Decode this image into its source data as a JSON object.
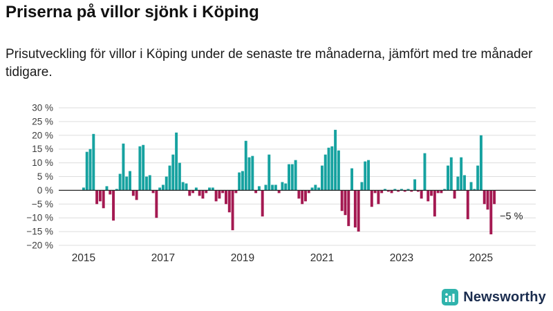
{
  "header": {
    "title": "Priserna på villor sjönk i Köping",
    "subtitle": "Prisutveckling för villor i Köping under de senaste tre månaderna, jämfört med tre månader tidigare."
  },
  "chart_data": {
    "type": "bar",
    "title": "Priserna på villor sjönk i Köping",
    "subtitle": "Prisutveckling för villor i Köping under de senaste tre månaderna, jämfört med tre månader tidigare.",
    "unit": "%",
    "frequency": "monthly",
    "start": "2015-01",
    "end": "2025-05",
    "ylim": [
      -20,
      30
    ],
    "y_ticks": [
      30,
      25,
      20,
      15,
      10,
      5,
      0,
      -5,
      -10,
      -15,
      -20
    ],
    "y_tick_labels": [
      "30 %",
      "25 %",
      "20 %",
      "15 %",
      "10 %",
      "5 %",
      "0 %",
      "−5 %",
      "−10 %",
      "−15 %",
      "−20 %"
    ],
    "x_tick_labels": [
      "2015",
      "2017",
      "2019",
      "2021",
      "2023",
      "2025"
    ],
    "grid": true,
    "legend": false,
    "colors": {
      "positive": "#16a2a0",
      "negative": "#a41951",
      "grid": "#dddddd",
      "zero_line": "#222222"
    },
    "annotation": {
      "label": "−5 %",
      "value": -5,
      "point": "last"
    },
    "values": [
      1,
      14,
      15,
      20.5,
      -5,
      -4,
      -6.5,
      1.5,
      -1.5,
      -11,
      0.5,
      6,
      17,
      5,
      7,
      -2,
      -3.5,
      16,
      16.5,
      5,
      5.5,
      -1,
      -10,
      1,
      2,
      5,
      9,
      13,
      21,
      10,
      3,
      2.5,
      -2,
      -1,
      1,
      -2,
      -3,
      -1,
      1,
      1,
      -4,
      -3,
      -1,
      -5,
      -8,
      -14.5,
      -1,
      6.5,
      7,
      18,
      12,
      12.5,
      -1,
      1.5,
      -9.5,
      2,
      13,
      2,
      2,
      -1,
      3,
      2.5,
      9.5,
      9.5,
      11,
      -3,
      -5,
      -4,
      -1,
      1,
      2,
      1,
      9,
      13,
      15.5,
      16,
      22,
      14.5,
      -7.5,
      -9,
      -13,
      8,
      -13.5,
      -15,
      3,
      10.5,
      11,
      -6,
      -1,
      -5,
      -1,
      0.5,
      -0.5,
      -1,
      0.5,
      -0.5,
      0.5,
      -0.5,
      0.5,
      -0.5,
      4,
      -0.5,
      -3,
      13.5,
      -4,
      -2,
      -9.5,
      -1,
      -1,
      0.5,
      9,
      12,
      -3,
      5,
      12,
      5.5,
      -10.5,
      3,
      0.5,
      9,
      20,
      -5,
      -7,
      -16,
      -5
    ]
  },
  "footer": {
    "brand": "Newsworthy",
    "logo_color": "#2fb3ac"
  }
}
